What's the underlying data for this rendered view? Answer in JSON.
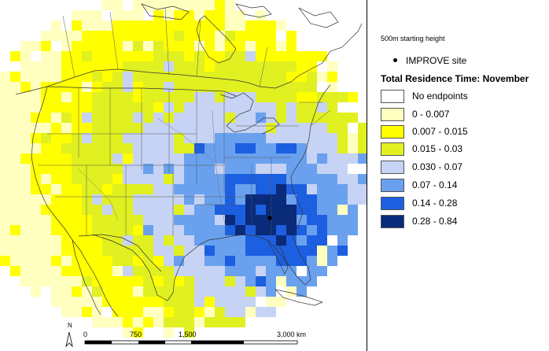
{
  "legend": {
    "starting_height": "500m starting height",
    "site_label": "IMPROVE site",
    "title": "Total Residence Time: November",
    "classes": [
      {
        "label": "No endpoints",
        "color": "#ffffff"
      },
      {
        "label": "0 - 0.007",
        "color": "#ffffc0"
      },
      {
        "label": "0.007 - 0.015",
        "color": "#ffff00"
      },
      {
        "label": "0.015 - 0.03",
        "color": "#e1f020"
      },
      {
        "label": "0.030 - 0.07",
        "color": "#c6d3f4"
      },
      {
        "label": "0.07 - 0.14",
        "color": "#6aa1ee"
      },
      {
        "label": "0.14 - 0.28",
        "color": "#1c5fe0"
      },
      {
        "label": "0.28 - 0.84",
        "color": "#0a2a7a"
      }
    ]
  },
  "scale_bar": {
    "ticks": [
      "0",
      "750",
      "1,500",
      "3,000 km"
    ]
  },
  "north_arrow": {
    "label": "N"
  }
}
